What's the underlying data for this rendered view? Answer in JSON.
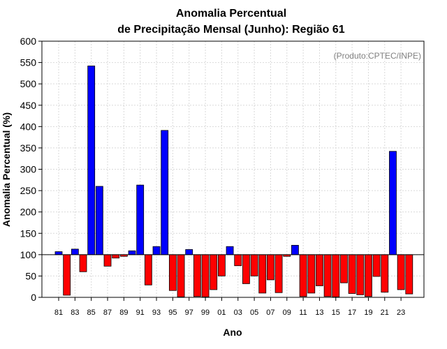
{
  "chart_data": {
    "type": "bar",
    "title_line1": "Anomalia Percentual",
    "title_line2": "de Precipitação Mensal (Junho): Região 61",
    "source": "(Produto:CPTEC/INPE)",
    "xlabel": "Ano",
    "ylabel": "Anomalia Percentual (%)",
    "ylim": [
      0,
      600
    ],
    "yticks": [
      0,
      50,
      100,
      150,
      200,
      250,
      300,
      350,
      400,
      450,
      500,
      550,
      600
    ],
    "baseline": 100,
    "grid": true,
    "positive_color": "#0000ff",
    "negative_color": "#ff0000",
    "tick_labels": [
      "81",
      "83",
      "85",
      "87",
      "89",
      "91",
      "93",
      "95",
      "97",
      "99",
      "01",
      "03",
      "05",
      "07",
      "09",
      "11",
      "13",
      "15",
      "17",
      "19",
      "21",
      "23"
    ],
    "categories": [
      "1981",
      "1982",
      "1983",
      "1984",
      "1985",
      "1986",
      "1987",
      "1988",
      "1989",
      "1990",
      "1991",
      "1992",
      "1993",
      "1994",
      "1995",
      "1996",
      "1997",
      "1998",
      "1999",
      "2000",
      "2001",
      "2002",
      "2003",
      "2004",
      "2005",
      "2006",
      "2007",
      "2008",
      "2009",
      "2010",
      "2011",
      "2012",
      "2013",
      "2014",
      "2015",
      "2016",
      "2017",
      "2018",
      "2019",
      "2020",
      "2021",
      "2022",
      "2023",
      "2024"
    ],
    "values": [
      107,
      5,
      113,
      60,
      542,
      260,
      73,
      92,
      96,
      109,
      263,
      29,
      119,
      391,
      16,
      1,
      112,
      2,
      1,
      18,
      50,
      119,
      74,
      32,
      50,
      10,
      41,
      11,
      96,
      122,
      2,
      10,
      27,
      2,
      1,
      34,
      9,
      6,
      2,
      49,
      12,
      342,
      18,
      8
    ]
  }
}
